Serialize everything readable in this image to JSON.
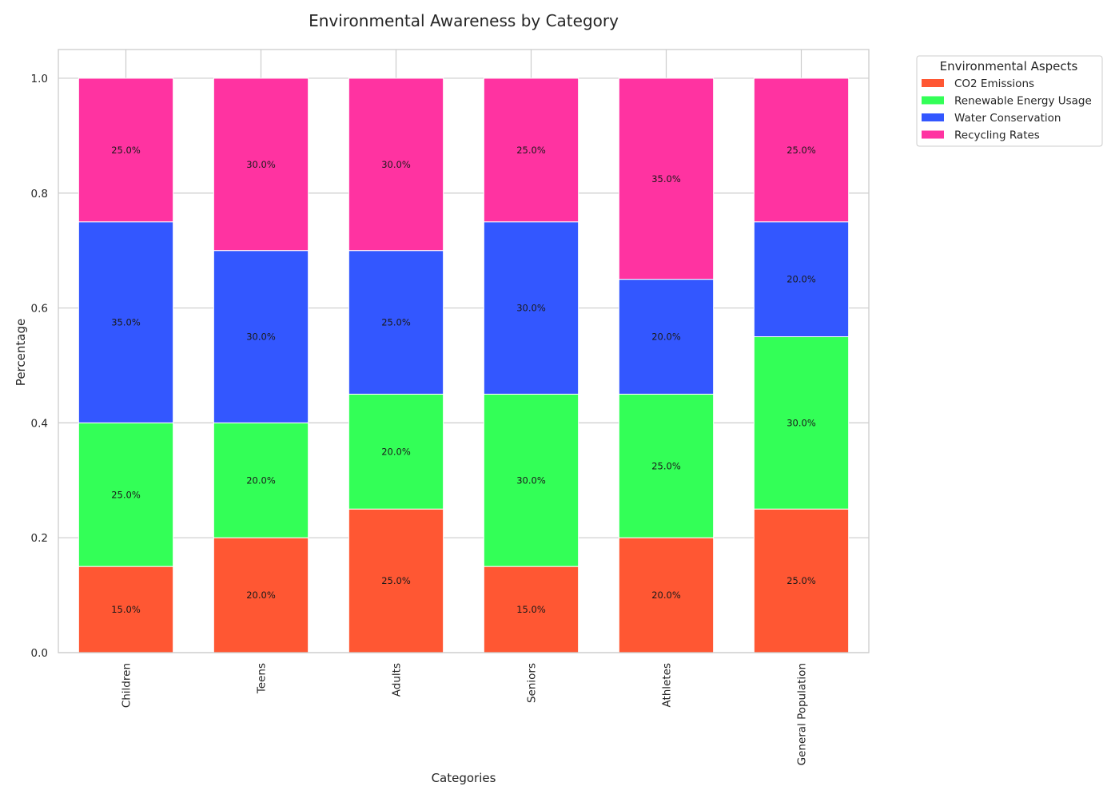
{
  "chart_data": {
    "type": "bar",
    "stacked": true,
    "title": "Environmental Awareness by Category",
    "xlabel": "Categories",
    "ylabel": "Percentage",
    "ylim": [
      0,
      1.05
    ],
    "yticks": [
      0.0,
      0.2,
      0.4,
      0.6,
      0.8,
      1.0
    ],
    "ytick_labels": [
      "0.0",
      "0.2",
      "0.4",
      "0.6",
      "0.8",
      "1.0"
    ],
    "grid": true,
    "legend_title": "Environmental Aspects",
    "legend_position": "outside-top-right",
    "categories": [
      "Children",
      "Teens",
      "Adults",
      "Seniors",
      "Athletes",
      "General Population"
    ],
    "series": [
      {
        "name": "CO2 Emissions",
        "color": "#FF5733",
        "values": [
          0.15,
          0.2,
          0.25,
          0.15,
          0.2,
          0.25
        ],
        "labels": [
          "15.0%",
          "20.0%",
          "25.0%",
          "15.0%",
          "20.0%",
          "25.0%"
        ]
      },
      {
        "name": "Renewable Energy Usage",
        "color": "#33FF57",
        "values": [
          0.25,
          0.2,
          0.2,
          0.3,
          0.25,
          0.3
        ],
        "labels": [
          "25.0%",
          "20.0%",
          "20.0%",
          "30.0%",
          "25.0%",
          "30.0%"
        ]
      },
      {
        "name": "Water Conservation",
        "color": "#3357FF",
        "values": [
          0.35,
          0.3,
          0.25,
          0.3,
          0.2,
          0.2
        ],
        "labels": [
          "35.0%",
          "30.0%",
          "25.0%",
          "30.0%",
          "20.0%",
          "20.0%"
        ]
      },
      {
        "name": "Recycling Rates",
        "color": "#FF33A1",
        "values": [
          0.25,
          0.3,
          0.3,
          0.25,
          0.35,
          0.25
        ],
        "labels": [
          "25.0%",
          "30.0%",
          "30.0%",
          "25.0%",
          "35.0%",
          "25.0%"
        ]
      }
    ]
  }
}
